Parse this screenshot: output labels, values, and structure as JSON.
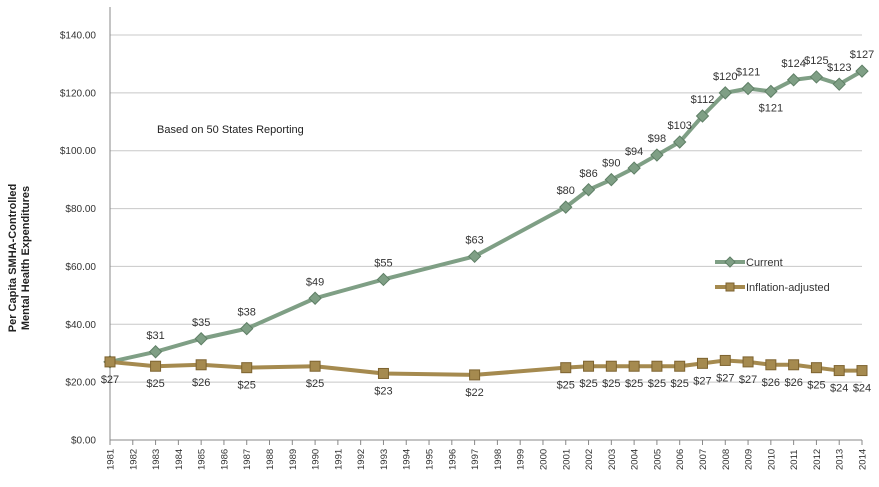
{
  "chart_data": {
    "type": "line",
    "title": "",
    "ylabel_line1": "Per Capita SMHA-Controlled",
    "ylabel_line2": "Mental Health Expenditures",
    "annotation": "Based on 50 States Reporting",
    "ylim": [
      0,
      140
    ],
    "yticks": [
      "$0.00",
      "$20.00",
      "$40.00",
      "$60.00",
      "$80.00",
      "$100.00",
      "$120.00",
      "$140.00"
    ],
    "ytick_values": [
      0,
      20,
      40,
      60,
      80,
      100,
      120,
      140
    ],
    "x": [
      "1981",
      "1982",
      "1983",
      "1984",
      "1985",
      "1986",
      "1987",
      "1988",
      "1989",
      "1990",
      "1991",
      "1992",
      "1993",
      "1994",
      "1995",
      "1996",
      "1997",
      "1998",
      "1999",
      "2000",
      "2001",
      "2002",
      "2003",
      "2004",
      "2005",
      "2006",
      "2007",
      "2008",
      "2009",
      "2010",
      "2011",
      "2012",
      "2013",
      "2014"
    ],
    "grid": true,
    "legend_position": "right",
    "series": [
      {
        "name": "Current",
        "color": "#7f9f85",
        "marker": "diamond",
        "points": [
          {
            "x": "1981",
            "y": 27,
            "label": ""
          },
          {
            "x": "1983",
            "y": 30.5,
            "label": "$31"
          },
          {
            "x": "1985",
            "y": 35,
            "label": "$35"
          },
          {
            "x": "1987",
            "y": 38.5,
            "label": "$38"
          },
          {
            "x": "1990",
            "y": 49,
            "label": "$49"
          },
          {
            "x": "1993",
            "y": 55.5,
            "label": "$55"
          },
          {
            "x": "1997",
            "y": 63.5,
            "label": "$63"
          },
          {
            "x": "2001",
            "y": 80.5,
            "label": "$80"
          },
          {
            "x": "2002",
            "y": 86.5,
            "label": "$86"
          },
          {
            "x": "2003",
            "y": 90,
            "label": "$90"
          },
          {
            "x": "2004",
            "y": 94,
            "label": "$94"
          },
          {
            "x": "2005",
            "y": 98.5,
            "label": "$98"
          },
          {
            "x": "2006",
            "y": 103,
            "label": "$103"
          },
          {
            "x": "2007",
            "y": 112,
            "label": "$112"
          },
          {
            "x": "2008",
            "y": 120,
            "label": "$120"
          },
          {
            "x": "2009",
            "y": 121.5,
            "label": "$121"
          },
          {
            "x": "2010",
            "y": 120.5,
            "label": "$121",
            "label_pos": "below"
          },
          {
            "x": "2011",
            "y": 124.5,
            "label": "$124"
          },
          {
            "x": "2012",
            "y": 125.5,
            "label": "$125"
          },
          {
            "x": "2013",
            "y": 123,
            "label": "$123"
          },
          {
            "x": "2014",
            "y": 127.5,
            "label": "$127"
          }
        ]
      },
      {
        "name": "Inflation-adjusted",
        "color": "#a58a4f",
        "marker": "square",
        "points": [
          {
            "x": "1981",
            "y": 27,
            "label": "$27"
          },
          {
            "x": "1983",
            "y": 25.5,
            "label": "$25"
          },
          {
            "x": "1985",
            "y": 26,
            "label": "$26"
          },
          {
            "x": "1987",
            "y": 25,
            "label": "$25"
          },
          {
            "x": "1990",
            "y": 25.5,
            "label": "$25"
          },
          {
            "x": "1993",
            "y": 23,
            "label": "$23"
          },
          {
            "x": "1997",
            "y": 22.5,
            "label": "$22"
          },
          {
            "x": "2001",
            "y": 25,
            "label": "$25"
          },
          {
            "x": "2002",
            "y": 25.5,
            "label": "$25"
          },
          {
            "x": "2003",
            "y": 25.5,
            "label": "$25"
          },
          {
            "x": "2004",
            "y": 25.5,
            "label": "$25"
          },
          {
            "x": "2005",
            "y": 25.5,
            "label": "$25"
          },
          {
            "x": "2006",
            "y": 25.5,
            "label": "$25"
          },
          {
            "x": "2007",
            "y": 26.5,
            "label": "$27"
          },
          {
            "x": "2008",
            "y": 27.5,
            "label": "$27"
          },
          {
            "x": "2009",
            "y": 27,
            "label": "$27"
          },
          {
            "x": "2010",
            "y": 26,
            "label": "$26"
          },
          {
            "x": "2011",
            "y": 26,
            "label": "$26"
          },
          {
            "x": "2012",
            "y": 25,
            "label": "$25"
          },
          {
            "x": "2013",
            "y": 24,
            "label": "$24"
          },
          {
            "x": "2014",
            "y": 24,
            "label": "$24"
          }
        ]
      }
    ]
  }
}
